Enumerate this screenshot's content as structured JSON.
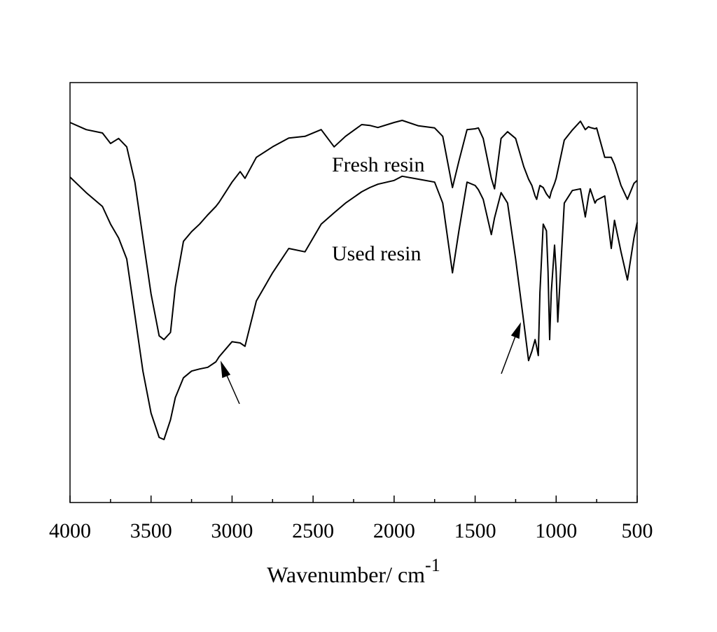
{
  "chart_data": {
    "type": "line",
    "x_label": "Wavenumber/ cm",
    "x_label_superscript": "-1",
    "xlim": [
      4000,
      500
    ],
    "xticks": [
      4000,
      3500,
      3000,
      2500,
      2000,
      1500,
      1000,
      500
    ],
    "ylim": [
      0,
      100
    ],
    "x": [
      4000,
      3900,
      3800,
      3750,
      3700,
      3650,
      3600,
      3550,
      3500,
      3450,
      3420,
      3380,
      3350,
      3300,
      3250,
      3200,
      3150,
      3100,
      3080,
      3000,
      2950,
      2920,
      2850,
      2750,
      2650,
      2550,
      2450,
      2370,
      2300,
      2200,
      2150,
      2100,
      2000,
      1950,
      1850,
      1750,
      1700,
      1640,
      1600,
      1550,
      1500,
      1480,
      1450,
      1400,
      1380,
      1340,
      1300,
      1250,
      1200,
      1170,
      1150,
      1130,
      1120,
      1110,
      1100,
      1080,
      1060,
      1050,
      1040,
      1030,
      1010,
      1000,
      990,
      950,
      900,
      850,
      820,
      800,
      790,
      760,
      750,
      700,
      660,
      640,
      600,
      560,
      520,
      500
    ],
    "series": [
      {
        "name": "Fresh resin",
        "color": "#000000",
        "values": [
          90.5,
          88.8,
          88,
          85.5,
          86.7,
          84.7,
          76.3,
          63,
          49.7,
          39.7,
          38.8,
          40.5,
          51.3,
          62.2,
          64.5,
          66.3,
          68.5,
          70.5,
          71.5,
          76.3,
          78.8,
          77.2,
          82.2,
          84.7,
          86.8,
          87.2,
          88.8,
          84.7,
          87.2,
          90,
          89.8,
          89.3,
          90.5,
          91,
          89.7,
          89.2,
          87.2,
          75,
          81.3,
          88.8,
          89,
          89.2,
          86.7,
          77.2,
          74.7,
          86.7,
          88.3,
          86.7,
          80,
          77,
          75.5,
          73,
          72.2,
          74,
          75.5,
          75,
          73.5,
          73,
          72.5,
          74,
          76,
          77.2,
          79,
          86.3,
          88.7,
          90.8,
          88.8,
          89.5,
          89.3,
          89,
          89.2,
          82.2,
          82.2,
          80.5,
          75.5,
          72.2,
          76,
          76.7
        ]
      },
      {
        "name": "Used resin",
        "color": "#000000",
        "values": [
          77.5,
          73.8,
          70.5,
          66.3,
          63,
          58,
          44.7,
          31.3,
          21.3,
          15.5,
          15,
          19.7,
          25,
          29.7,
          31.3,
          31.8,
          32.2,
          33.5,
          34.7,
          38.3,
          38,
          37.2,
          48,
          54.7,
          60.5,
          59.7,
          66.3,
          69,
          71.3,
          74,
          75,
          75.8,
          76.7,
          77.7,
          77,
          76.3,
          71.3,
          54.7,
          64.7,
          76.3,
          75.5,
          74.5,
          72.2,
          63.8,
          67.8,
          73.8,
          71.3,
          58,
          43,
          33.8,
          36,
          38.8,
          37,
          35,
          50,
          66.3,
          64.7,
          55,
          38.8,
          50,
          61.3,
          55,
          43,
          71.3,
          74.3,
          74.7,
          68,
          73,
          74.7,
          71.3,
          72,
          73,
          60.5,
          67.2,
          59.7,
          53,
          63,
          66.7
        ]
      }
    ]
  }
}
